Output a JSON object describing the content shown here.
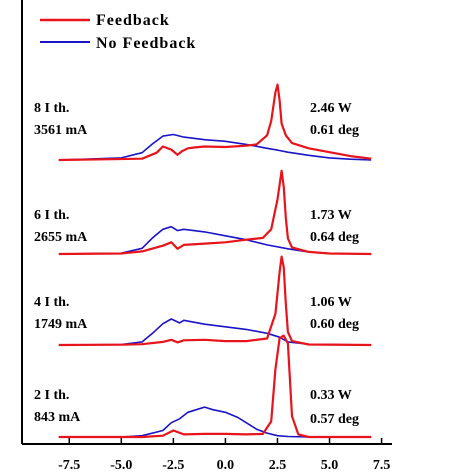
{
  "chart_data": {
    "type": "line",
    "xlim": [
      -9.0,
      8.0
    ],
    "x_ticks": [
      "-7.5",
      "-5.0",
      "-2.5",
      "0.0",
      "2.5",
      "5.0",
      "7.5"
    ],
    "x_tick_values": [
      -7.5,
      -5.0,
      -2.5,
      0.0,
      2.5,
      5.0,
      7.5
    ],
    "grid": false,
    "legend_position": "top-left",
    "colors": {
      "feedback": "#e8141b",
      "no_feedback": "#1a14c8",
      "axis": "#000000"
    },
    "legend": [
      {
        "key": "feedback",
        "label": "Feedback"
      },
      {
        "key": "no_feedback",
        "label": "No Feedback"
      }
    ],
    "panels": [
      {
        "left_label": [
          "8 I th.",
          "3561 mA"
        ],
        "right_label": [
          "2.46 W",
          "0.61 deg"
        ],
        "series": [
          {
            "key": "feedback",
            "x": [
              -8.0,
              -4.0,
              -3.3,
              -3.0,
              -2.6,
              -2.3,
              -2.1,
              -1.8,
              -1.5,
              -1.0,
              0.0,
              1.0,
              1.5,
              2.0,
              2.2,
              2.4,
              2.5,
              2.6,
              2.7,
              2.9,
              3.2,
              4.0,
              5.0,
              6.0,
              7.0
            ],
            "y": [
              0.0,
              0.05,
              0.28,
              0.52,
              0.4,
              0.2,
              0.33,
              0.45,
              0.48,
              0.52,
              0.5,
              0.55,
              0.6,
              0.95,
              1.5,
              2.6,
              2.9,
              2.3,
              1.4,
              0.95,
              0.65,
              0.45,
              0.3,
              0.15,
              0.05
            ]
          },
          {
            "key": "no_feedback",
            "x": [
              -8.0,
              -5.0,
              -4.0,
              -3.5,
              -3.0,
              -2.5,
              -2.0,
              -1.0,
              0.0,
              1.0,
              2.0,
              2.5,
              3.0,
              4.0,
              5.0,
              6.0,
              7.0
            ],
            "y": [
              0.0,
              0.08,
              0.28,
              0.62,
              0.92,
              0.98,
              0.88,
              0.78,
              0.72,
              0.6,
              0.45,
              0.38,
              0.3,
              0.18,
              0.08,
              0.03,
              0.0
            ]
          }
        ]
      },
      {
        "left_label": [
          "6 I th.",
          "2655 mA"
        ],
        "right_label": [
          "1.73 W",
          "0.64 deg"
        ],
        "series": [
          {
            "key": "feedback",
            "x": [
              -8.0,
              -5.0,
              -4.0,
              -3.0,
              -2.6,
              -2.3,
              -2.0,
              -1.0,
              0.0,
              1.0,
              1.8,
              2.2,
              2.5,
              2.7,
              2.8,
              2.9,
              3.0,
              3.2,
              4.0,
              5.0,
              7.0
            ],
            "y": [
              0.0,
              0.02,
              0.1,
              0.32,
              0.45,
              0.2,
              0.35,
              0.4,
              0.45,
              0.55,
              0.62,
              0.95,
              2.1,
              3.2,
              2.6,
              1.4,
              0.6,
              0.25,
              0.08,
              0.02,
              0.0
            ]
          },
          {
            "key": "no_feedback",
            "x": [
              -8.0,
              -5.0,
              -4.0,
              -3.5,
              -3.0,
              -2.6,
              -2.3,
              -2.0,
              -1.0,
              0.0,
              1.0,
              2.0,
              3.0,
              4.0,
              5.0,
              7.0
            ],
            "y": [
              0.0,
              0.03,
              0.22,
              0.62,
              0.95,
              1.05,
              0.9,
              0.95,
              0.85,
              0.7,
              0.55,
              0.35,
              0.2,
              0.08,
              0.02,
              0.0
            ]
          }
        ]
      },
      {
        "left_label": [
          "4 I th.",
          "1749 mA"
        ],
        "right_label": [
          "1.06 W",
          "0.60 deg"
        ],
        "series": [
          {
            "key": "feedback",
            "x": [
              -8.0,
              -5.0,
              -4.0,
              -3.0,
              -2.6,
              -2.3,
              -2.0,
              -1.0,
              0.0,
              1.0,
              2.0,
              2.4,
              2.6,
              2.7,
              2.8,
              2.9,
              3.0,
              3.2,
              4.0,
              7.0
            ],
            "y": [
              0.0,
              0.01,
              0.03,
              0.12,
              0.2,
              0.1,
              0.18,
              0.2,
              0.15,
              0.15,
              0.25,
              1.2,
              2.8,
              3.4,
              3.0,
              1.6,
              0.5,
              0.15,
              0.02,
              0.0
            ]
          },
          {
            "key": "no_feedback",
            "x": [
              -8.0,
              -5.0,
              -4.0,
              -3.5,
              -3.0,
              -2.6,
              -2.2,
              -2.0,
              -1.0,
              0.0,
              1.0,
              2.0,
              2.6,
              3.0,
              4.0,
              7.0
            ],
            "y": [
              0.0,
              0.02,
              0.12,
              0.45,
              0.82,
              1.0,
              0.85,
              0.95,
              0.8,
              0.7,
              0.6,
              0.45,
              0.3,
              0.12,
              0.03,
              0.0
            ]
          }
        ]
      },
      {
        "left_label": [
          "2 I th.",
          "843 mA"
        ],
        "right_label": [
          "0.33 W",
          "0.57 deg"
        ],
        "series": [
          {
            "key": "feedback",
            "x": [
              -8.0,
              -4.0,
              -3.0,
              -2.5,
              -2.0,
              -1.0,
              0.0,
              1.0,
              1.8,
              2.2,
              2.4,
              2.6,
              2.8,
              3.0,
              3.2,
              3.5,
              4.0,
              7.0
            ],
            "y": [
              0.0,
              0.0,
              0.05,
              0.25,
              0.1,
              0.12,
              0.12,
              0.1,
              0.12,
              0.6,
              2.6,
              3.8,
              3.9,
              3.6,
              0.8,
              0.1,
              0.0,
              0.0
            ]
          },
          {
            "key": "no_feedback",
            "x": [
              -8.0,
              -5.0,
              -4.0,
              -3.0,
              -2.6,
              -2.2,
              -1.8,
              -1.4,
              -1.0,
              -0.6,
              0.0,
              0.6,
              1.0,
              1.5,
              2.0,
              2.5,
              3.0,
              4.0,
              7.0
            ],
            "y": [
              0.0,
              0.0,
              0.05,
              0.25,
              0.55,
              0.7,
              0.95,
              1.05,
              1.15,
              1.05,
              0.95,
              0.75,
              0.55,
              0.3,
              0.15,
              0.05,
              0.02,
              0.0,
              0.0
            ]
          }
        ]
      }
    ]
  }
}
